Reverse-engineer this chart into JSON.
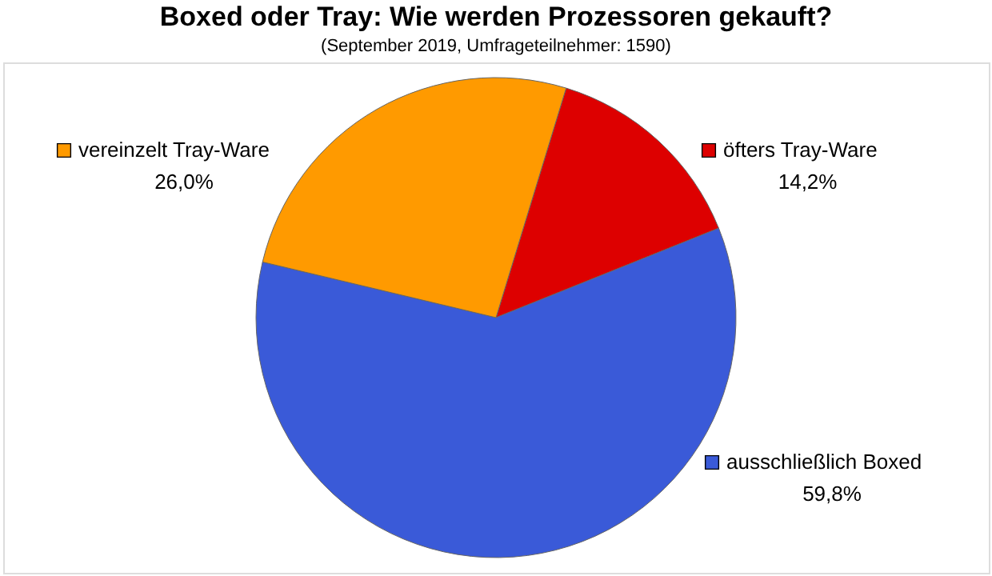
{
  "chart_data": {
    "type": "pie",
    "title": "Boxed oder Tray: Wie werden Prozessoren gekauft?",
    "subtitle": "(September 2019, Umfrageteilnehmer: 1590)",
    "categories": [
      "öfters Tray-Ware",
      "ausschließlich Boxed",
      "vereinzelt Tray-Ware"
    ],
    "values": [
      14.2,
      59.8,
      26.0
    ],
    "colors": [
      "#dd0000",
      "#3a5ad8",
      "#ff9a00"
    ],
    "value_labels": [
      "14,2%",
      "59,8%",
      "26,0%"
    ],
    "legend": "right"
  }
}
